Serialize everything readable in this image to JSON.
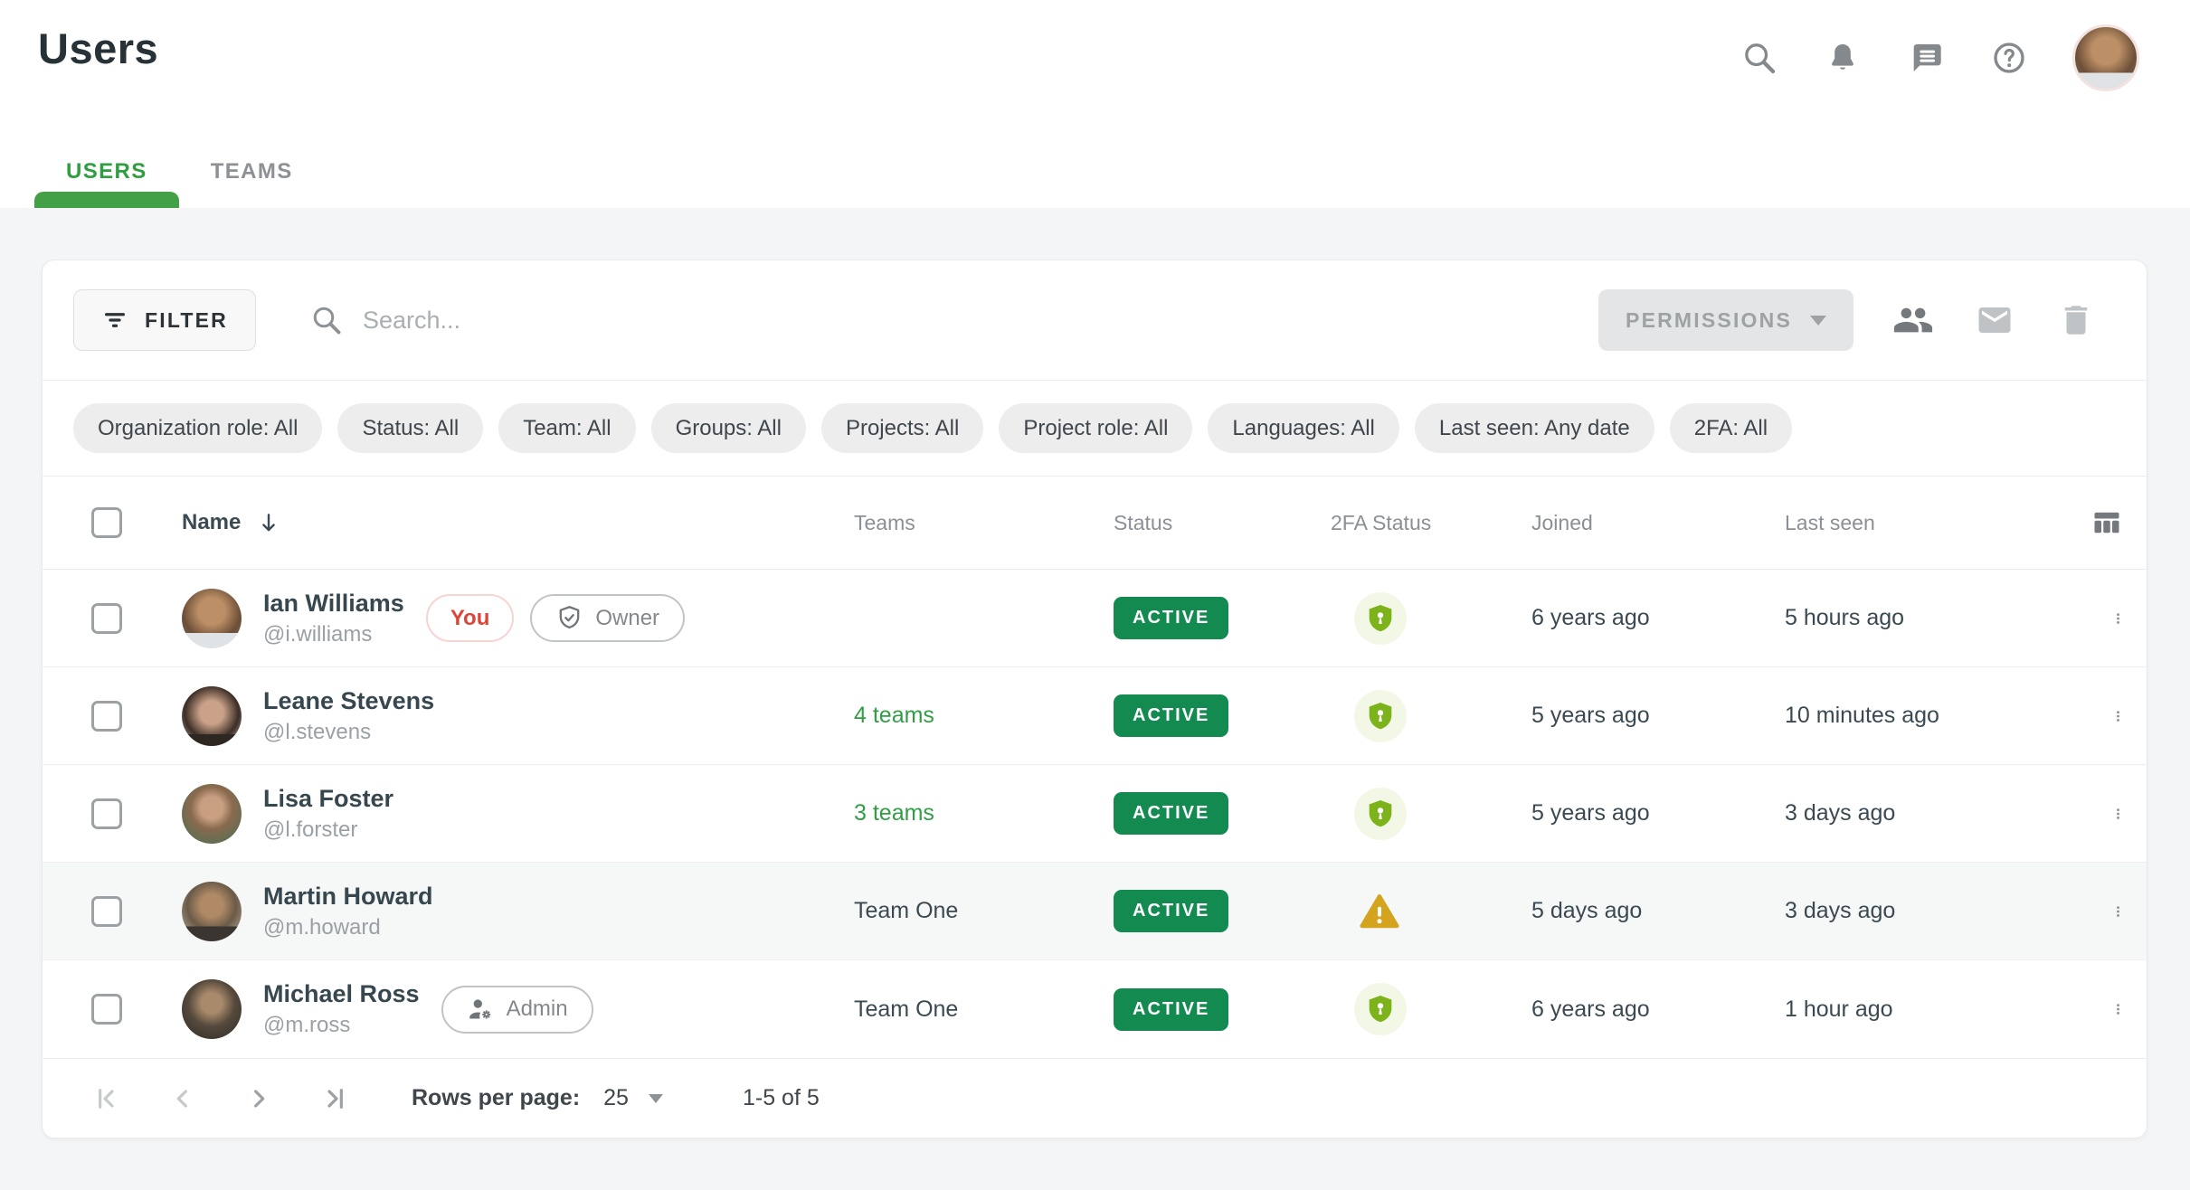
{
  "header": {
    "title": "Users",
    "icons": [
      "search-icon",
      "bell-icon",
      "chat-icon",
      "help-icon",
      "avatar"
    ]
  },
  "tabs": [
    {
      "label": "USERS",
      "active": true
    },
    {
      "label": "TEAMS",
      "active": false
    }
  ],
  "toolbar": {
    "filter_label": "FILTER",
    "search_placeholder": "Search...",
    "permissions_label": "PERMISSIONS",
    "action_icons": [
      "people-icon",
      "mail-icon",
      "trash-icon"
    ]
  },
  "filters": [
    "Organization role: All",
    "Status: All",
    "Team: All",
    "Groups: All",
    "Projects: All",
    "Project role: All",
    "Languages: All",
    "Last seen: Any date",
    "2FA: All"
  ],
  "table": {
    "columns": [
      {
        "label": "Name",
        "sorted": "desc"
      },
      {
        "label": "Teams"
      },
      {
        "label": "Status"
      },
      {
        "label": "2FA Status"
      },
      {
        "label": "Joined"
      },
      {
        "label": "Last seen"
      }
    ],
    "rows": [
      {
        "name": "Ian Williams",
        "handle": "@i.williams",
        "badges": [
          {
            "label": "You",
            "type": "you"
          },
          {
            "label": "Owner",
            "type": "role",
            "icon": "shield-check-icon"
          }
        ],
        "teams": {
          "label": "",
          "link": false
        },
        "status": "ACTIVE",
        "twofa": "enabled",
        "joined": "6 years ago",
        "last_seen": "5 hours ago"
      },
      {
        "name": "Leane Stevens",
        "handle": "@l.stevens",
        "badges": [],
        "teams": {
          "label": "4 teams",
          "link": true
        },
        "status": "ACTIVE",
        "twofa": "enabled",
        "joined": "5 years ago",
        "last_seen": "10 minutes ago"
      },
      {
        "name": "Lisa Foster",
        "handle": "@l.forster",
        "badges": [],
        "teams": {
          "label": "3 teams",
          "link": true
        },
        "status": "ACTIVE",
        "twofa": "enabled",
        "joined": "5 years ago",
        "last_seen": "3 days ago"
      },
      {
        "name": "Martin Howard",
        "handle": "@m.howard",
        "badges": [],
        "teams": {
          "label": "Team One",
          "link": false
        },
        "status": "ACTIVE",
        "twofa": "warning",
        "joined": "5 days ago",
        "last_seen": "3 days ago"
      },
      {
        "name": "Michael Ross",
        "handle": "@m.ross",
        "badges": [
          {
            "label": "Admin",
            "type": "role",
            "icon": "person-gear-icon"
          }
        ],
        "teams": {
          "label": "Team One",
          "link": false
        },
        "status": "ACTIVE",
        "twofa": "enabled",
        "joined": "6 years ago",
        "last_seen": "1 hour ago"
      }
    ],
    "twofa_icons": {
      "enabled": "shield-lock-icon",
      "warning": "warning-icon"
    },
    "row_menu_icon": "kebab-icon",
    "columns_settings_icon": "columns-icon"
  },
  "pagination": {
    "rows_per_page_label": "Rows per page:",
    "rows_per_page": "25",
    "range": "1-5 of 5",
    "buttons": [
      "first-page",
      "previous-page",
      "next-page",
      "last-page"
    ]
  },
  "colors": {
    "accent_green": "#2f9e44",
    "tab_indicator": "#43a047",
    "active_badge": "#128a50",
    "twofa_shield": "#7cb31b",
    "warning": "#d5a41f",
    "you_red": "#dc4638"
  }
}
